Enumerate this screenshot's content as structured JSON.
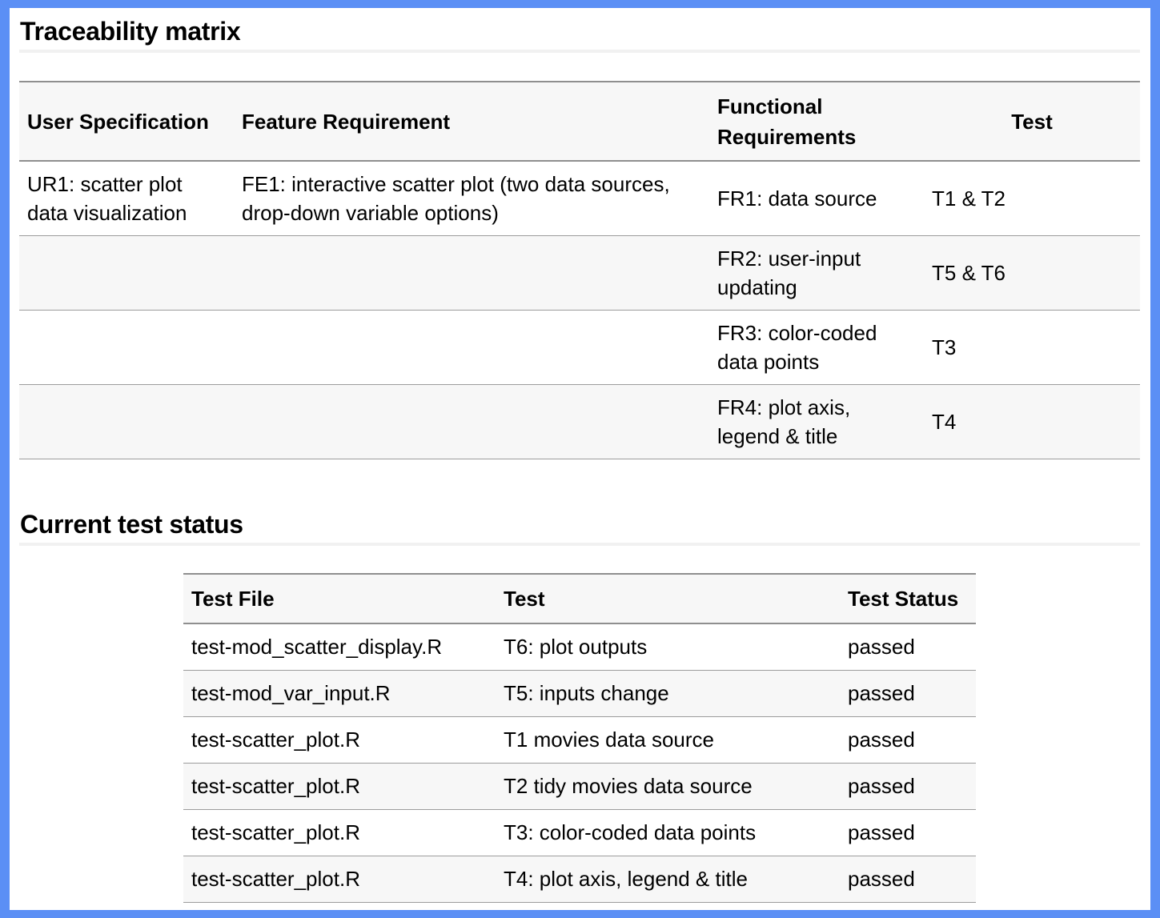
{
  "traceability": {
    "title": "Traceability matrix",
    "columns": [
      "User Specification",
      "Feature Requirement",
      "Functional Requirements",
      "Test"
    ],
    "rows": [
      {
        "user_spec": "UR1: scatter plot data visualization",
        "feature": "FE1: interactive scatter plot (two data sources, drop-down variable options)",
        "functional": "FR1: data source",
        "test": "T1 & T2"
      },
      {
        "user_spec": "",
        "feature": "",
        "functional": "FR2: user-input updating",
        "test": "T5 & T6"
      },
      {
        "user_spec": "",
        "feature": "",
        "functional": "FR3: color-coded data points",
        "test": "T3"
      },
      {
        "user_spec": "",
        "feature": "",
        "functional": "FR4: plot axis, legend & title",
        "test": "T4"
      }
    ]
  },
  "status": {
    "title": "Current test status",
    "columns": [
      "Test File",
      "Test",
      "Test Status"
    ],
    "rows": [
      {
        "file": "test-mod_scatter_display.R",
        "test": "T6: plot outputs",
        "status": "passed"
      },
      {
        "file": "test-mod_var_input.R",
        "test": "T5: inputs change",
        "status": "passed"
      },
      {
        "file": "test-scatter_plot.R",
        "test": "T1 movies data source",
        "status": "passed"
      },
      {
        "file": "test-scatter_plot.R",
        "test": "T2 tidy movies data source",
        "status": "passed"
      },
      {
        "file": "test-scatter_plot.R",
        "test": "T3: color-coded data points",
        "status": "passed"
      },
      {
        "file": "test-scatter_plot.R",
        "test": "T4: plot axis, legend & title",
        "status": "passed"
      }
    ]
  }
}
